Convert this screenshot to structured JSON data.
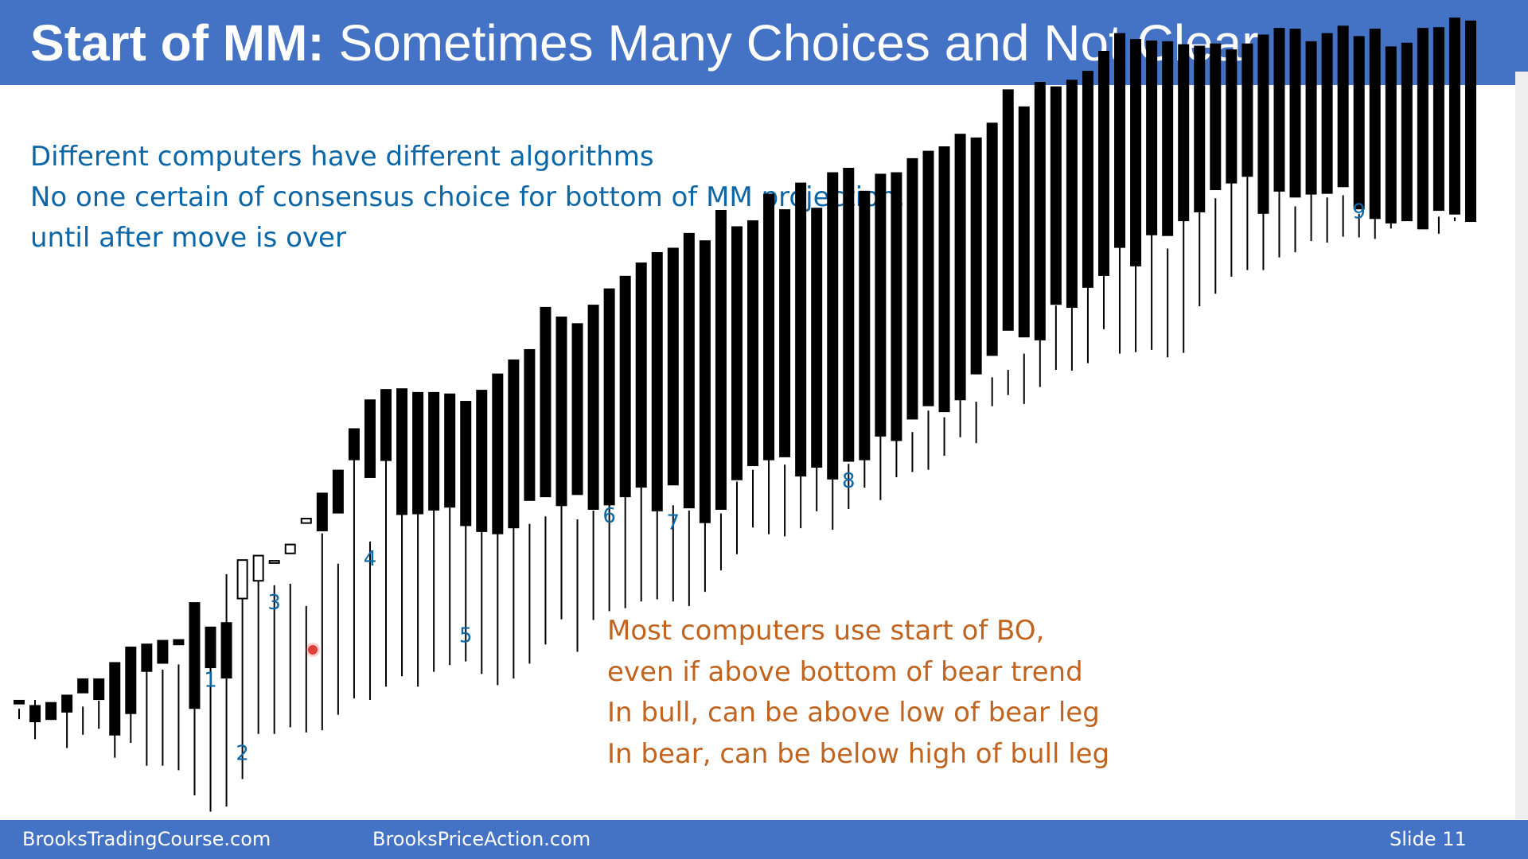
{
  "slide": {
    "title_bold": "Start of MM:",
    "title_rest": " Sometimes Many Choices and Not Clear",
    "notes_blue": [
      "Different computers have different algorithms",
      "No one certain of consensus choice for bottom of MM projection,",
      "until after move is over"
    ],
    "notes_orange": [
      "Most computers use start of BO,",
      "even if above bottom of bear trend",
      "In bull, can be above low of bear leg",
      "In bear, can be below high of bull leg"
    ],
    "footer": {
      "left": "BrooksTradingCourse.com",
      "center": "BrooksPriceAction.com",
      "right": "Slide  11"
    },
    "colors": {
      "header": "#4472c4",
      "blue_text": "#0b67a8",
      "orange_text": "#c0641f",
      "pivot_label": "#0b67a8"
    }
  },
  "chart_data": {
    "type": "candlestick",
    "title": "",
    "xlabel": "",
    "ylabel": "",
    "grid": false,
    "ylim": [
      210,
      1000
    ],
    "note": "values are read as an unlabeled vertical price index (no axis printed); higher = higher price",
    "bars": [
      [
        236,
        252,
        227,
        241,
        248
      ],
      [
        262,
        245,
        200,
        253,
        224
      ],
      [
        247,
        249,
        226,
        247,
        227
      ],
      [
        248,
        259,
        188,
        253,
        237
      ],
      [
        249,
        281,
        206,
        244,
        263
      ],
      [
        256,
        281,
        214,
        252,
        254
      ],
      [
        295,
        303,
        175,
        299,
        206
      ],
      [
        297,
        324,
        195,
        304,
        235
      ],
      [
        312,
        328,
        164,
        297,
        292
      ],
      [
        323,
        333,
        164,
        294,
        303
      ],
      [
        330,
        334,
        158,
        301,
        328
      ],
      [
        337,
        384,
        124,
        368,
        242
      ],
      [
        402,
        351,
        102,
        303,
        297
      ],
      [
        433,
        357,
        109,
        423,
        283
      ],
      [
        450,
        390,
        146,
        396,
        442
      ],
      [
        479,
        414,
        207,
        417,
        448
      ],
      [
        501,
        438,
        207,
        408,
        441
      ],
      [
        518,
        451,
        216,
        410,
        463
      ],
      [
        549,
        492,
        209,
        380,
        498
      ],
      [
        575,
        532,
        212,
        478,
        482
      ],
      [
        599,
        563,
        233,
        437,
        506
      ],
      [
        638,
        619,
        255,
        601,
        578
      ],
      [
        686,
        658,
        253,
        467,
        554
      ],
      [
        704,
        672,
        271,
        588,
        577
      ],
      [
        709,
        673,
        285,
        545,
        504
      ],
      [
        725,
        668,
        271,
        531,
        505
      ],
      [
        740,
        668,
        291,
        533,
        510
      ],
      [
        755,
        666,
        300,
        514,
        514
      ],
      [
        773,
        656,
        305,
        521,
        489
      ],
      [
        790,
        671,
        288,
        494,
        481
      ],
      [
        805,
        693,
        273,
        530,
        478
      ],
      [
        823,
        712,
        282,
        485,
        486
      ],
      [
        837,
        726,
        302,
        491,
        523
      ],
      [
        852,
        783,
        328,
        501,
        528
      ],
      [
        866,
        770,
        362,
        519,
        516
      ],
      [
        880,
        761,
        318,
        497,
        531
      ],
      [
        900,
        786,
        361,
        509,
        511
      ],
      [
        916,
        808,
        373,
        525,
        517
      ],
      [
        934,
        825,
        377,
        533,
        528
      ],
      [
        951,
        843,
        386,
        560,
        541
      ],
      [
        970,
        857,
        389,
        508,
        509
      ],
      [
        986,
        863,
        386,
        516,
        544
      ],
      [
        1003,
        883,
        380,
        509,
        513
      ],
      [
        1017,
        873,
        399,
        517,
        493
      ],
      [
        1041,
        914,
        428,
        505,
        511
      ],
      [
        1062,
        892,
        450,
        548,
        551
      ],
      [
        1079,
        900,
        486,
        564,
        570
      ],
      [
        1096,
        936,
        477,
        582,
        578
      ],
      [
        1114,
        915,
        474,
        571,
        582
      ],
      [
        1132,
        951,
        485,
        556,
        556
      ],
      [
        1149,
        917,
        508,
        590,
        568
      ],
      [
        1162,
        965,
        483,
        578,
        552
      ],
      [
        1178,
        971,
        511,
        572,
        576
      ],
      [
        1190,
        940,
        540,
        602,
        578
      ],
      [
        1202,
        963,
        523,
        625,
        610
      ],
      [
        1216,
        965,
        554,
        604,
        604
      ],
      [
        1236,
        984,
        561,
        615,
        633
      ],
      [
        1254,
        994,
        564,
        644,
        651
      ],
      [
        1275,
        1000,
        583,
        635,
        643
      ],
      [
        1292,
        1017,
        608,
        664,
        659
      ],
      [
        1302,
        1012,
        600,
        656,
        694
      ],
      [
        1318,
        1032,
        650,
        689,
        719
      ],
      [
        1333,
        1077,
        665,
        699,
        753
      ],
      [
        1348,
        1054,
        653,
        721,
        744
      ],
      [
        1363,
        1087,
        676,
        745,
        740
      ],
      [
        1376,
        1081,
        699,
        786,
        788
      ],
      [
        1396,
        1090,
        698,
        809,
        784
      ],
      [
        1414,
        1102,
        708,
        833,
        811
      ],
      [
        1436,
        1129,
        754,
        846,
        827
      ],
      [
        1451,
        1153,
        721,
        879,
        865
      ],
      [
        1465,
        1145,
        723,
        875,
        840
      ],
      [
        1484,
        1143,
        726,
        885,
        882
      ],
      [
        1502,
        1142,
        716,
        863,
        881
      ],
      [
        1525,
        1138,
        722,
        912,
        901
      ],
      [
        1537,
        1136,
        785,
        944,
        913
      ],
      [
        1550,
        1139,
        802,
        931,
        943
      ],
      [
        1568,
        1131,
        825,
        952,
        952
      ],
      [
        1589,
        1139,
        834,
        964,
        961
      ],
      [
        1605,
        1151,
        834,
        935,
        911
      ],
      [
        1620,
        1160,
        851,
        952,
        941
      ],
      [
        1637,
        1159,
        858,
        920,
        933
      ],
      [
        1656,
        1142,
        873,
        944,
        937
      ],
      [
        1672,
        1153,
        871,
        932,
        938
      ],
      [
        1690,
        1163,
        879,
        935,
        947
      ],
      [
        1706,
        1149,
        878,
        910,
        917
      ],
      [
        1722,
        1159,
        876,
        903,
        904
      ],
      [
        1738,
        1135,
        890,
        912,
        898
      ],
      [
        1756,
        1140,
        908,
        921,
        901
      ],
      [
        1773,
        1160,
        925,
        895,
        890
      ],
      [
        1791,
        1161,
        906,
        883,
        915
      ],
      [
        1806,
        1174,
        905,
        900,
        910
      ],
      [
        1822,
        1170,
        899,
        915,
        900
      ]
    ],
    "pivot_labels": [
      {
        "label": "1",
        "bar": 12
      },
      {
        "label": "2",
        "bar": 14
      },
      {
        "label": "3",
        "bar": 16
      },
      {
        "label": "4",
        "bar": 22
      },
      {
        "label": "5",
        "bar": 28
      },
      {
        "label": "6",
        "bar": 37
      },
      {
        "label": "7",
        "bar": 41
      },
      {
        "label": "8",
        "bar": 52
      },
      {
        "label": "9",
        "bar": 84
      }
    ]
  }
}
